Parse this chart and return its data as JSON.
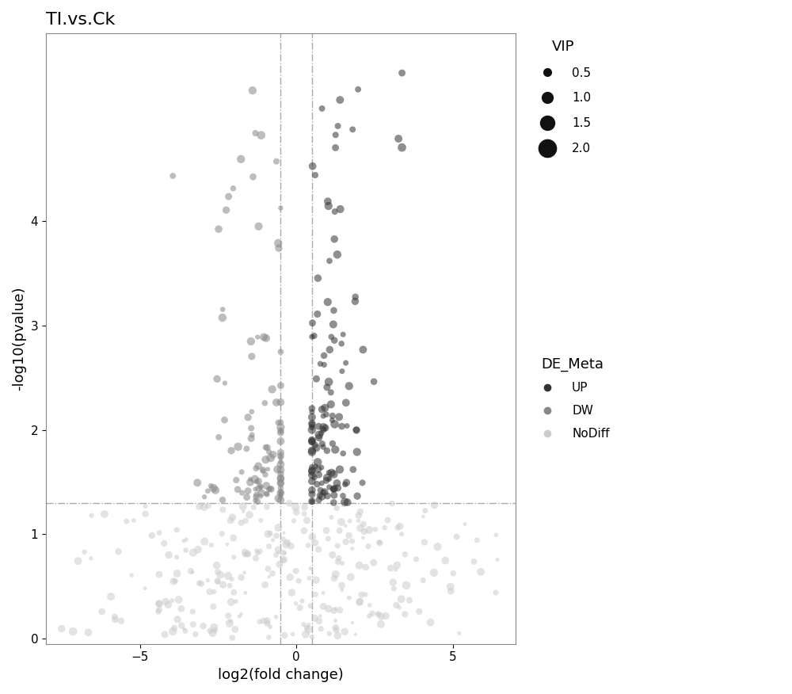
{
  "title": "TI.vs.Ck",
  "xlabel": "log2(fold change)",
  "ylabel": "-log10(pvalue)",
  "xlim": [
    -8,
    7
  ],
  "ylim": [
    -0.05,
    5.8
  ],
  "hline_y": 1.3,
  "vline_x1": -0.5,
  "vline_x2": 0.5,
  "color_UP": "#333333",
  "color_DW": "#888888",
  "color_NoDiff": "#cccccc",
  "alpha": 0.55,
  "background_color": "#ffffff",
  "seed": 42,
  "vip_sizes": [
    0.5,
    1.0,
    1.5,
    2.0
  ],
  "vip_legend_ms": [
    8,
    11,
    14,
    17
  ],
  "de_legend_ms": 7
}
